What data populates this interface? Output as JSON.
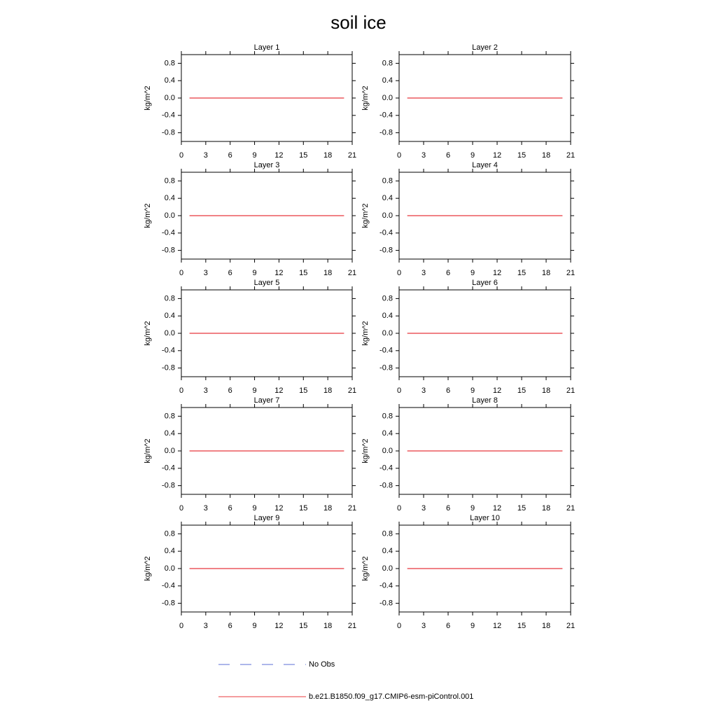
{
  "title": "soil ice",
  "legend": [
    {
      "name": "No Obs",
      "color": "#5b6fd6",
      "dash": true
    },
    {
      "name": "b.e21.B1850.f09_g17.CMIP6-esm-piControl.001",
      "color": "#e8383d",
      "dash": false
    }
  ],
  "chart_data": [
    {
      "type": "line",
      "title": "Layer 1",
      "ylabel": "kg/m^2",
      "xlim": [
        0,
        21
      ],
      "xticks": [
        0,
        3,
        6,
        9,
        12,
        15,
        18,
        21
      ],
      "ylim": [
        -1,
        1
      ],
      "yticks": [
        0.8,
        0.4,
        {
          "value": 0,
          "label": "0.0"
        },
        -0.4,
        -0.8
      ],
      "x": [
        1,
        2,
        3,
        4,
        5,
        6,
        7,
        8,
        9,
        10,
        11,
        12,
        13,
        14,
        15,
        16,
        17,
        18,
        19,
        20
      ],
      "series": [
        {
          "color": "#e8383d",
          "values": [
            0,
            0,
            0,
            0,
            0,
            0,
            0,
            0,
            0,
            0,
            0,
            0,
            0,
            0,
            0,
            0,
            0,
            0,
            0,
            0
          ]
        }
      ]
    },
    {
      "type": "line",
      "title": "Layer 2",
      "ylabel": "kg/m^2",
      "xlim": [
        0,
        21
      ],
      "xticks": [
        0,
        3,
        6,
        9,
        12,
        15,
        18,
        21
      ],
      "ylim": [
        -1,
        1
      ],
      "yticks": [
        0.8,
        0.4,
        {
          "value": 0,
          "label": "0.0"
        },
        -0.4,
        -0.8
      ],
      "x": [
        1,
        2,
        3,
        4,
        5,
        6,
        7,
        8,
        9,
        10,
        11,
        12,
        13,
        14,
        15,
        16,
        17,
        18,
        19,
        20
      ],
      "series": [
        {
          "color": "#e8383d",
          "values": [
            0,
            0,
            0,
            0,
            0,
            0,
            0,
            0,
            0,
            0,
            0,
            0,
            0,
            0,
            0,
            0,
            0,
            0,
            0,
            0
          ]
        }
      ]
    },
    {
      "type": "line",
      "title": "Layer 3",
      "ylabel": "kg/m^2",
      "xlim": [
        0,
        21
      ],
      "xticks": [
        0,
        3,
        6,
        9,
        12,
        15,
        18,
        21
      ],
      "ylim": [
        -1,
        1
      ],
      "yticks": [
        0.8,
        0.4,
        {
          "value": 0,
          "label": "0.0"
        },
        -0.4,
        -0.8
      ],
      "x": [
        1,
        2,
        3,
        4,
        5,
        6,
        7,
        8,
        9,
        10,
        11,
        12,
        13,
        14,
        15,
        16,
        17,
        18,
        19,
        20
      ],
      "series": [
        {
          "color": "#e8383d",
          "values": [
            0,
            0,
            0,
            0,
            0,
            0,
            0,
            0,
            0,
            0,
            0,
            0,
            0,
            0,
            0,
            0,
            0,
            0,
            0,
            0
          ]
        }
      ]
    },
    {
      "type": "line",
      "title": "Layer 4",
      "ylabel": "kg/m^2",
      "xlim": [
        0,
        21
      ],
      "xticks": [
        0,
        3,
        6,
        9,
        12,
        15,
        18,
        21
      ],
      "ylim": [
        -1,
        1
      ],
      "yticks": [
        0.8,
        0.4,
        {
          "value": 0,
          "label": "0.0"
        },
        -0.4,
        -0.8
      ],
      "x": [
        1,
        2,
        3,
        4,
        5,
        6,
        7,
        8,
        9,
        10,
        11,
        12,
        13,
        14,
        15,
        16,
        17,
        18,
        19,
        20
      ],
      "series": [
        {
          "color": "#e8383d",
          "values": [
            0,
            0,
            0,
            0,
            0,
            0,
            0,
            0,
            0,
            0,
            0,
            0,
            0,
            0,
            0,
            0,
            0,
            0,
            0,
            0
          ]
        }
      ]
    },
    {
      "type": "line",
      "title": "Layer 5",
      "ylabel": "kg/m^2",
      "xlim": [
        0,
        21
      ],
      "xticks": [
        0,
        3,
        6,
        9,
        12,
        15,
        18,
        21
      ],
      "ylim": [
        -1,
        1
      ],
      "yticks": [
        0.8,
        0.4,
        {
          "value": 0,
          "label": "0.0"
        },
        -0.4,
        -0.8
      ],
      "x": [
        1,
        2,
        3,
        4,
        5,
        6,
        7,
        8,
        9,
        10,
        11,
        12,
        13,
        14,
        15,
        16,
        17,
        18,
        19,
        20
      ],
      "series": [
        {
          "color": "#e8383d",
          "values": [
            0,
            0,
            0,
            0,
            0,
            0,
            0,
            0,
            0,
            0,
            0,
            0,
            0,
            0,
            0,
            0,
            0,
            0,
            0,
            0
          ]
        }
      ]
    },
    {
      "type": "line",
      "title": "Layer 6",
      "ylabel": "kg/m^2",
      "xlim": [
        0,
        21
      ],
      "xticks": [
        0,
        3,
        6,
        9,
        12,
        15,
        18,
        21
      ],
      "ylim": [
        -1,
        1
      ],
      "yticks": [
        0.8,
        0.4,
        {
          "value": 0,
          "label": "0.0"
        },
        -0.4,
        -0.8
      ],
      "x": [
        1,
        2,
        3,
        4,
        5,
        6,
        7,
        8,
        9,
        10,
        11,
        12,
        13,
        14,
        15,
        16,
        17,
        18,
        19,
        20
      ],
      "series": [
        {
          "color": "#e8383d",
          "values": [
            0,
            0,
            0,
            0,
            0,
            0,
            0,
            0,
            0,
            0,
            0,
            0,
            0,
            0,
            0,
            0,
            0,
            0,
            0,
            0
          ]
        }
      ]
    },
    {
      "type": "line",
      "title": "Layer 7",
      "ylabel": "kg/m^2",
      "xlim": [
        0,
        21
      ],
      "xticks": [
        0,
        3,
        6,
        9,
        12,
        15,
        18,
        21
      ],
      "ylim": [
        -1,
        1
      ],
      "yticks": [
        0.8,
        0.4,
        {
          "value": 0,
          "label": "0.0"
        },
        -0.4,
        -0.8
      ],
      "x": [
        1,
        2,
        3,
        4,
        5,
        6,
        7,
        8,
        9,
        10,
        11,
        12,
        13,
        14,
        15,
        16,
        17,
        18,
        19,
        20
      ],
      "series": [
        {
          "color": "#e8383d",
          "values": [
            0,
            0,
            0,
            0,
            0,
            0,
            0,
            0,
            0,
            0,
            0,
            0,
            0,
            0,
            0,
            0,
            0,
            0,
            0,
            0
          ]
        }
      ]
    },
    {
      "type": "line",
      "title": "Layer 8",
      "ylabel": "kg/m^2",
      "xlim": [
        0,
        21
      ],
      "xticks": [
        0,
        3,
        6,
        9,
        12,
        15,
        18,
        21
      ],
      "ylim": [
        -1,
        1
      ],
      "yticks": [
        0.8,
        0.4,
        {
          "value": 0,
          "label": "0.0"
        },
        -0.4,
        -0.8
      ],
      "x": [
        1,
        2,
        3,
        4,
        5,
        6,
        7,
        8,
        9,
        10,
        11,
        12,
        13,
        14,
        15,
        16,
        17,
        18,
        19,
        20
      ],
      "series": [
        {
          "color": "#e8383d",
          "values": [
            0,
            0,
            0,
            0,
            0,
            0,
            0,
            0,
            0,
            0,
            0,
            0,
            0,
            0,
            0,
            0,
            0,
            0,
            0,
            0
          ]
        }
      ]
    },
    {
      "type": "line",
      "title": "Layer 9",
      "ylabel": "kg/m^2",
      "xlim": [
        0,
        21
      ],
      "xticks": [
        0,
        3,
        6,
        9,
        12,
        15,
        18,
        21
      ],
      "ylim": [
        -1,
        1
      ],
      "yticks": [
        0.8,
        0.4,
        {
          "value": 0,
          "label": "0.0"
        },
        -0.4,
        -0.8
      ],
      "x": [
        1,
        2,
        3,
        4,
        5,
        6,
        7,
        8,
        9,
        10,
        11,
        12,
        13,
        14,
        15,
        16,
        17,
        18,
        19,
        20
      ],
      "series": [
        {
          "color": "#e8383d",
          "values": [
            0,
            0,
            0,
            0,
            0,
            0,
            0,
            0,
            0,
            0,
            0,
            0,
            0,
            0,
            0,
            0,
            0,
            0,
            0,
            0
          ]
        }
      ]
    },
    {
      "type": "line",
      "title": "Layer 10",
      "ylabel": "kg/m^2",
      "xlim": [
        0,
        21
      ],
      "xticks": [
        0,
        3,
        6,
        9,
        12,
        15,
        18,
        21
      ],
      "ylim": [
        -1,
        1
      ],
      "yticks": [
        0.8,
        0.4,
        {
          "value": 0,
          "label": "0.0"
        },
        -0.4,
        -0.8
      ],
      "x": [
        1,
        2,
        3,
        4,
        5,
        6,
        7,
        8,
        9,
        10,
        11,
        12,
        13,
        14,
        15,
        16,
        17,
        18,
        19,
        20
      ],
      "series": [
        {
          "color": "#e8383d",
          "values": [
            0,
            0,
            0,
            0,
            0,
            0,
            0,
            0,
            0,
            0,
            0,
            0,
            0,
            0,
            0,
            0,
            0,
            0,
            0,
            0
          ]
        }
      ]
    }
  ]
}
